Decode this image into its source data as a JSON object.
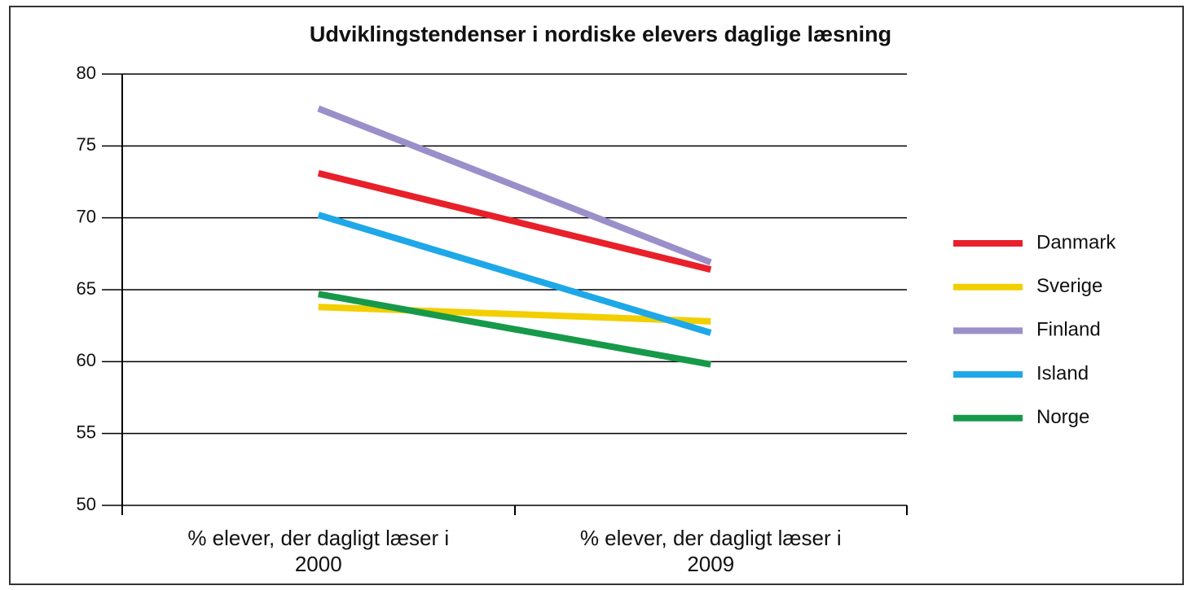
{
  "chart_data": {
    "type": "line",
    "title": "Udviklingstendenser i nordiske elevers daglige læsning",
    "categories": [
      "% elever, der dagligt læser i 2000",
      "% elever, der dagligt læser i 2009"
    ],
    "series": [
      {
        "name": "Danmark",
        "color": "#e8202a",
        "values": [
          73.1,
          66.4
        ]
      },
      {
        "name": "Sverige",
        "color": "#f2cf00",
        "values": [
          63.8,
          62.8
        ]
      },
      {
        "name": "Finland",
        "color": "#9b8fca",
        "values": [
          77.6,
          66.9
        ]
      },
      {
        "name": "Island",
        "color": "#1ea8e8",
        "values": [
          70.2,
          62.0
        ]
      },
      {
        "name": "Norge",
        "color": "#17994a",
        "values": [
          64.7,
          59.8
        ]
      }
    ],
    "ylim": [
      50,
      80
    ],
    "yticks": [
      50,
      55,
      60,
      65,
      70,
      75,
      80
    ],
    "grid": true,
    "legend": "right"
  }
}
